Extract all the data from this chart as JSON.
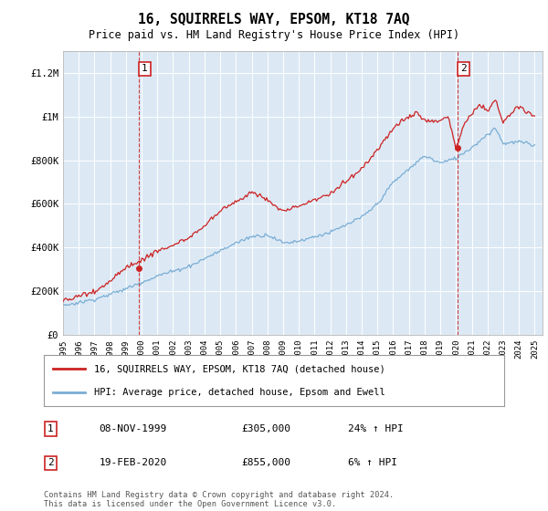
{
  "title": "16, SQUIRRELS WAY, EPSOM, KT18 7AQ",
  "subtitle": "Price paid vs. HM Land Registry's House Price Index (HPI)",
  "legend_line1": "16, SQUIRRELS WAY, EPSOM, KT18 7AQ (detached house)",
  "legend_line2": "HPI: Average price, detached house, Epsom and Ewell",
  "footnote": "Contains HM Land Registry data © Crown copyright and database right 2024.\nThis data is licensed under the Open Government Licence v3.0.",
  "sale1_date": "08-NOV-1999",
  "sale1_price": "£305,000",
  "sale1_hpi": "24% ↑ HPI",
  "sale2_date": "19-FEB-2020",
  "sale2_price": "£855,000",
  "sale2_hpi": "6% ↑ HPI",
  "ylim": [
    0,
    1300000
  ],
  "yticks": [
    0,
    200000,
    400000,
    600000,
    800000,
    1000000,
    1200000
  ],
  "ytick_labels": [
    "£0",
    "£200K",
    "£400K",
    "£600K",
    "£800K",
    "£1M",
    "£1.2M"
  ],
  "hpi_color": "#7aadd4",
  "property_color": "#cc2222",
  "plot_bg": "#dce9f5",
  "marker1_x": 1999.85,
  "marker2_x": 2020.12,
  "sale1_y": 305000,
  "sale2_y": 855000,
  "xlim_start": 1995,
  "xlim_end": 2025.5
}
